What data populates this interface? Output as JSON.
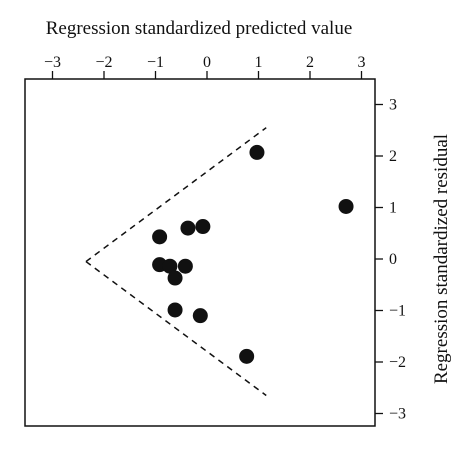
{
  "chart_data": {
    "type": "scatter",
    "title": "",
    "xlabel": "Regression standardized predicted value",
    "ylabel": "Regression standardized residual",
    "x_axis_position": "top",
    "y_axis_position": "right",
    "xlim": [
      -3,
      3
    ],
    "ylim": [
      -3,
      3
    ],
    "xticks": [
      -3,
      -2,
      -1,
      0,
      1,
      2,
      3
    ],
    "yticks": [
      -3,
      -2,
      -1,
      0,
      1,
      2,
      3
    ],
    "xtick_labels": [
      "−3",
      "−2",
      "−1",
      "0",
      "1",
      "2",
      "3"
    ],
    "ytick_labels": [
      "−3",
      "−2",
      "−1",
      "0",
      "1",
      "2",
      "3"
    ],
    "grid": false,
    "points": [
      {
        "x": 0.97,
        "y": 2.07
      },
      {
        "x": 2.7,
        "y": 1.02
      },
      {
        "x": -0.92,
        "y": 0.43
      },
      {
        "x": -0.37,
        "y": 0.6
      },
      {
        "x": -0.08,
        "y": 0.63
      },
      {
        "x": -0.92,
        "y": -0.11
      },
      {
        "x": -0.72,
        "y": -0.14
      },
      {
        "x": -0.42,
        "y": -0.14
      },
      {
        "x": -0.62,
        "y": -0.37
      },
      {
        "x": -0.62,
        "y": -0.99
      },
      {
        "x": -0.13,
        "y": -1.1
      },
      {
        "x": 0.77,
        "y": -1.89
      }
    ],
    "reference_lines": [
      {
        "style": "dashed",
        "from": {
          "x": -2.35,
          "y": -0.05
        },
        "to": {
          "x": 1.15,
          "y": 2.55
        }
      },
      {
        "style": "dashed",
        "from": {
          "x": -2.35,
          "y": -0.05
        },
        "to": {
          "x": 1.15,
          "y": -2.65
        }
      }
    ],
    "colors": {
      "points": "#111111",
      "axes": "#111111",
      "background": "#ffffff"
    }
  }
}
